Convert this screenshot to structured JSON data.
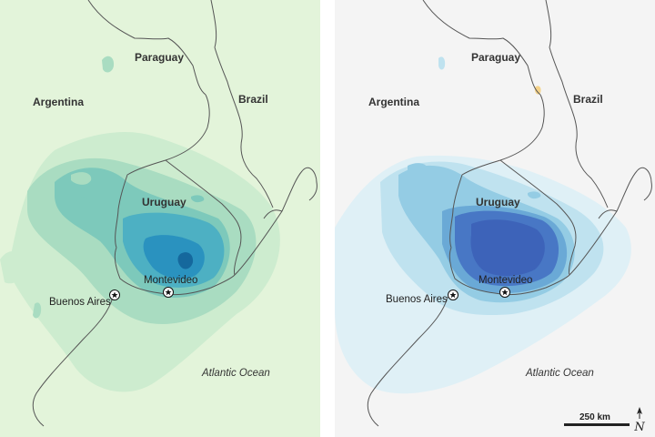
{
  "panels": [
    {
      "id": "left",
      "background": "#e3f4da",
      "shade_colors": [
        "#cdeccf",
        "#a9dcc1",
        "#7dc9bb",
        "#4db0c3",
        "#2a92bf",
        "#15689d"
      ],
      "labels": {
        "paraguay": "Paraguay",
        "argentina": "Argentina",
        "brazil": "Brazil",
        "uruguay": "Uruguay",
        "montevideo": "Montevideo",
        "buenos_aires": "Buenos Aires",
        "atlantic": "Atlantic Ocean"
      }
    },
    {
      "id": "right",
      "background": "#f4f4f4",
      "shade_colors": [
        "#dff0f6",
        "#bfe2ef",
        "#94cce4",
        "#6aa9d6",
        "#4877c5",
        "#3d63b9"
      ],
      "labels": {
        "paraguay": "Paraguay",
        "argentina": "Argentina",
        "brazil": "Brazil",
        "uruguay": "Uruguay",
        "montevideo": "Montevideo",
        "buenos_aires": "Buenos Aires",
        "atlantic": "Atlantic Ocean"
      }
    }
  ],
  "scale": {
    "label": "250 km"
  },
  "north_symbol": "N",
  "border_color": "#555555",
  "highlight_color": "#f5d38a"
}
